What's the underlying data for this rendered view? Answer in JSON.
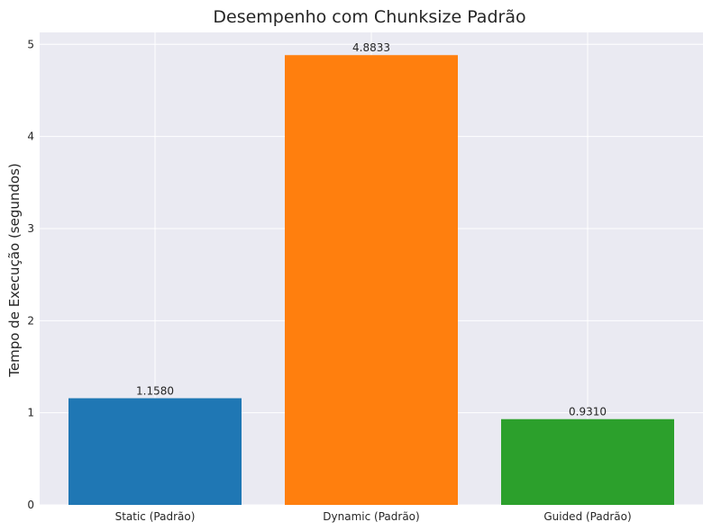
{
  "chart_data": {
    "type": "bar",
    "title": "Desempenho com Chunksize Padrão",
    "xlabel": "",
    "ylabel": "Tempo de Execução (segundos)",
    "categories": [
      "Static (Padrão)",
      "Dynamic (Padrão)",
      "Guided (Padrão)"
    ],
    "values": [
      1.158,
      4.8833,
      0.931
    ],
    "data_labels": [
      "1.1580",
      "4.8833",
      "0.9310"
    ],
    "colors": [
      "#1f77b4",
      "#ff7f0e",
      "#2ca02c"
    ],
    "ylim": [
      0,
      5.13
    ],
    "yticks": [
      0,
      1,
      2,
      3,
      4,
      5
    ],
    "grid": true,
    "background": "#eaeaf2"
  }
}
